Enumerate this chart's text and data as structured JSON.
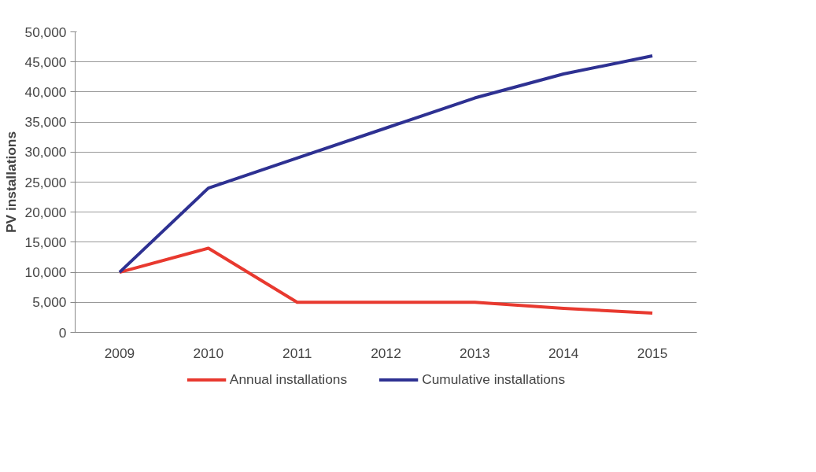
{
  "chart_data": {
    "type": "line",
    "ylabel": "PV installations",
    "categories": [
      "2009",
      "2010",
      "2011",
      "2012",
      "2013",
      "2014",
      "2015"
    ],
    "series": [
      {
        "name": "Annual installations",
        "color": "#e8392f",
        "values": [
          10000,
          14000,
          5000,
          5000,
          5000,
          4000,
          3200
        ]
      },
      {
        "name": "Cumulative installations",
        "color": "#2e3192",
        "values": [
          10000,
          24000,
          29000,
          34000,
          39000,
          43000,
          46000
        ]
      }
    ],
    "ylim": [
      0,
      50000
    ],
    "yticks": [
      {
        "value": 0,
        "label": "0"
      },
      {
        "value": 5000,
        "label": "5,000"
      },
      {
        "value": 10000,
        "label": "10,000"
      },
      {
        "value": 15000,
        "label": "15,000"
      },
      {
        "value": 20000,
        "label": "20,000"
      },
      {
        "value": 25000,
        "label": "25,000"
      },
      {
        "value": 30000,
        "label": "30,000"
      },
      {
        "value": 35000,
        "label": "35,000"
      },
      {
        "value": 40000,
        "label": "40,000"
      },
      {
        "value": 45000,
        "label": "45,000"
      },
      {
        "value": 50000,
        "label": "50,000"
      }
    ],
    "grid": "y",
    "legend": "bottom",
    "marker": "none",
    "line_style": "solid"
  }
}
